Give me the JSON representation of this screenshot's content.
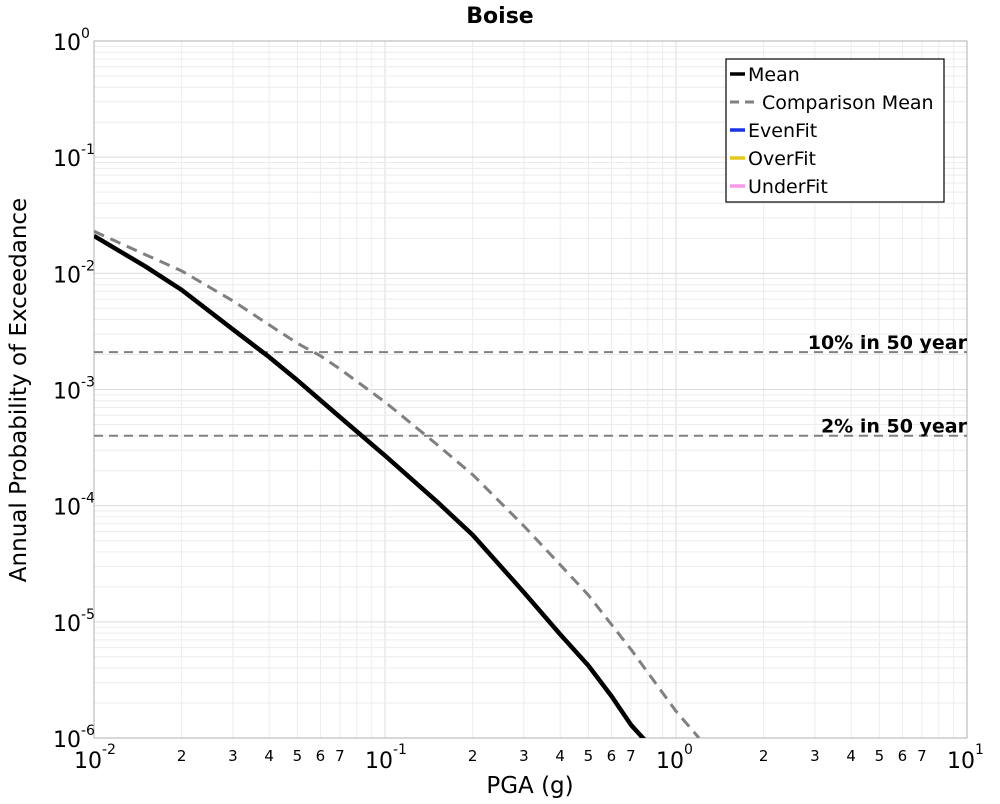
{
  "chart_data": {
    "type": "line",
    "title": "Boise",
    "xlabel": "PGA (g)",
    "ylabel": "Annual Probability of Exceedance",
    "x_scale": "log",
    "y_scale": "log",
    "xlim": [
      0.01,
      10
    ],
    "ylim": [
      1e-06,
      1
    ],
    "grid": true,
    "legend_position": "top-right",
    "x_major_ticks": [
      {
        "value": 0.01,
        "base": "10",
        "exp": "-2"
      },
      {
        "value": 0.1,
        "base": "10",
        "exp": "-1"
      },
      {
        "value": 1,
        "base": "10",
        "exp": "0"
      },
      {
        "value": 10,
        "base": "10",
        "exp": "1"
      }
    ],
    "y_major_ticks": [
      {
        "value": 1,
        "base": "10",
        "exp": "0"
      },
      {
        "value": 0.1,
        "base": "10",
        "exp": "-1"
      },
      {
        "value": 0.01,
        "base": "10",
        "exp": "-2"
      },
      {
        "value": 0.001,
        "base": "10",
        "exp": "-3"
      },
      {
        "value": 0.0001,
        "base": "10",
        "exp": "-4"
      },
      {
        "value": 1e-05,
        "base": "10",
        "exp": "-5"
      },
      {
        "value": 1e-06,
        "base": "10",
        "exp": "-6"
      }
    ],
    "x_minor_labels": [
      "2",
      "3",
      "4",
      "5",
      "6",
      "7"
    ],
    "series": [
      {
        "name": "Mean",
        "color": "#000000",
        "style": "solid",
        "x": [
          0.01,
          0.015,
          0.02,
          0.03,
          0.04,
          0.05,
          0.07,
          0.1,
          0.15,
          0.2,
          0.3,
          0.4,
          0.5,
          0.6,
          0.7,
          0.8
        ],
        "y": [
          0.021,
          0.0115,
          0.0072,
          0.0033,
          0.0019,
          0.0012,
          0.00058,
          0.00027,
          0.00011,
          5.6e-05,
          1.8e-05,
          7.8e-06,
          4.2e-06,
          2.3e-06,
          1.3e-06,
          9e-07
        ]
      },
      {
        "name": "Comparison Mean",
        "color": "#808080",
        "style": "dashed",
        "x": [
          0.01,
          0.015,
          0.02,
          0.03,
          0.04,
          0.05,
          0.06,
          0.07,
          0.1,
          0.15,
          0.2,
          0.3,
          0.4,
          0.5,
          0.7,
          1.0,
          1.2
        ],
        "y": [
          0.023,
          0.0145,
          0.0105,
          0.0058,
          0.0036,
          0.0025,
          0.00195,
          0.0015,
          0.00078,
          0.00034,
          0.000185,
          6.7e-05,
          3.1e-05,
          1.7e-05,
          5.8e-06,
          1.7e-06,
          1e-06
        ]
      },
      {
        "name": "EvenFit",
        "color": "#1a33e6",
        "style": "solid",
        "x": [],
        "y": []
      },
      {
        "name": "OverFit",
        "color": "#e6c81a",
        "style": "solid",
        "x": [],
        "y": []
      },
      {
        "name": "UnderFit",
        "color": "#f59ae6",
        "style": "solid",
        "x": [],
        "y": []
      }
    ],
    "reference_lines": [
      {
        "label": "10% in 50 year",
        "y": 0.0021,
        "color": "#808080",
        "style": "dashed"
      },
      {
        "label": "2% in 50 year",
        "y": 0.0004,
        "color": "#808080",
        "style": "dashed"
      }
    ]
  }
}
